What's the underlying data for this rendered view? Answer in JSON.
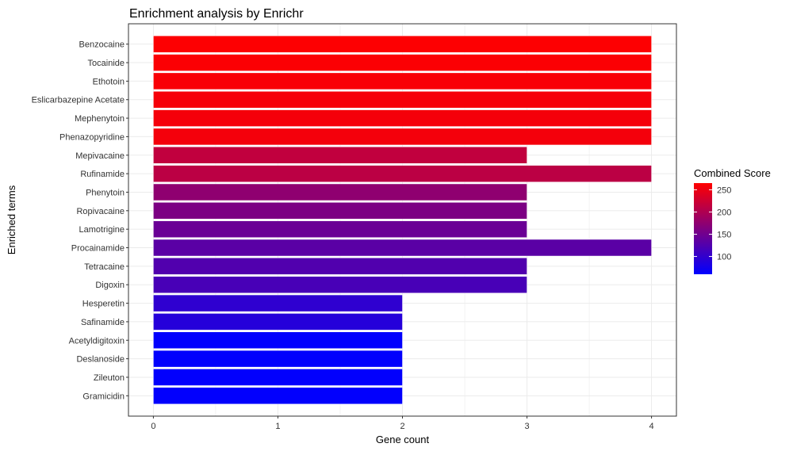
{
  "chart_data": {
    "type": "bar",
    "orientation": "horizontal",
    "title": "Enrichment analysis by Enrichr",
    "xlabel": "Gene count",
    "ylabel": "Enriched terms",
    "xlim": [
      -0.2,
      4.2
    ],
    "xticks": [
      0,
      1,
      2,
      3,
      4
    ],
    "x_tick_labels": [
      "0",
      "1",
      "2",
      "3",
      "4"
    ],
    "grid": true,
    "legend": {
      "title": "Combined Score",
      "placement": "right",
      "range": [
        60,
        265
      ],
      "ticks": [
        100,
        150,
        200,
        250
      ],
      "tick_labels": [
        "100",
        "150",
        "200",
        "250"
      ],
      "low_color": "#0000ff",
      "high_color": "#ff0000"
    },
    "categories": [
      "Benzocaine",
      "Tocainide",
      "Ethotoin",
      "Eslicarbazepine Acetate",
      "Mephenytoin",
      "Phenazopyridine",
      "Mepivacaine",
      "Rufinamide",
      "Phenytoin",
      "Ropivacaine",
      "Lamotrigine",
      "Procainamide",
      "Tetracaine",
      "Digoxin",
      "Hesperetin",
      "Safinamide",
      "Acetyldigitoxin",
      "Deslanoside",
      "Zileuton",
      "Gramicidin"
    ],
    "values": [
      4,
      4,
      4,
      4,
      4,
      4,
      3,
      4,
      3,
      3,
      3,
      4,
      3,
      3,
      2,
      2,
      2,
      2,
      2,
      2
    ],
    "combined_score": [
      263,
      262,
      260,
      258,
      257,
      256,
      215,
      210,
      175,
      160,
      145,
      132,
      125,
      118,
      98,
      90,
      62,
      62,
      62,
      62
    ]
  }
}
